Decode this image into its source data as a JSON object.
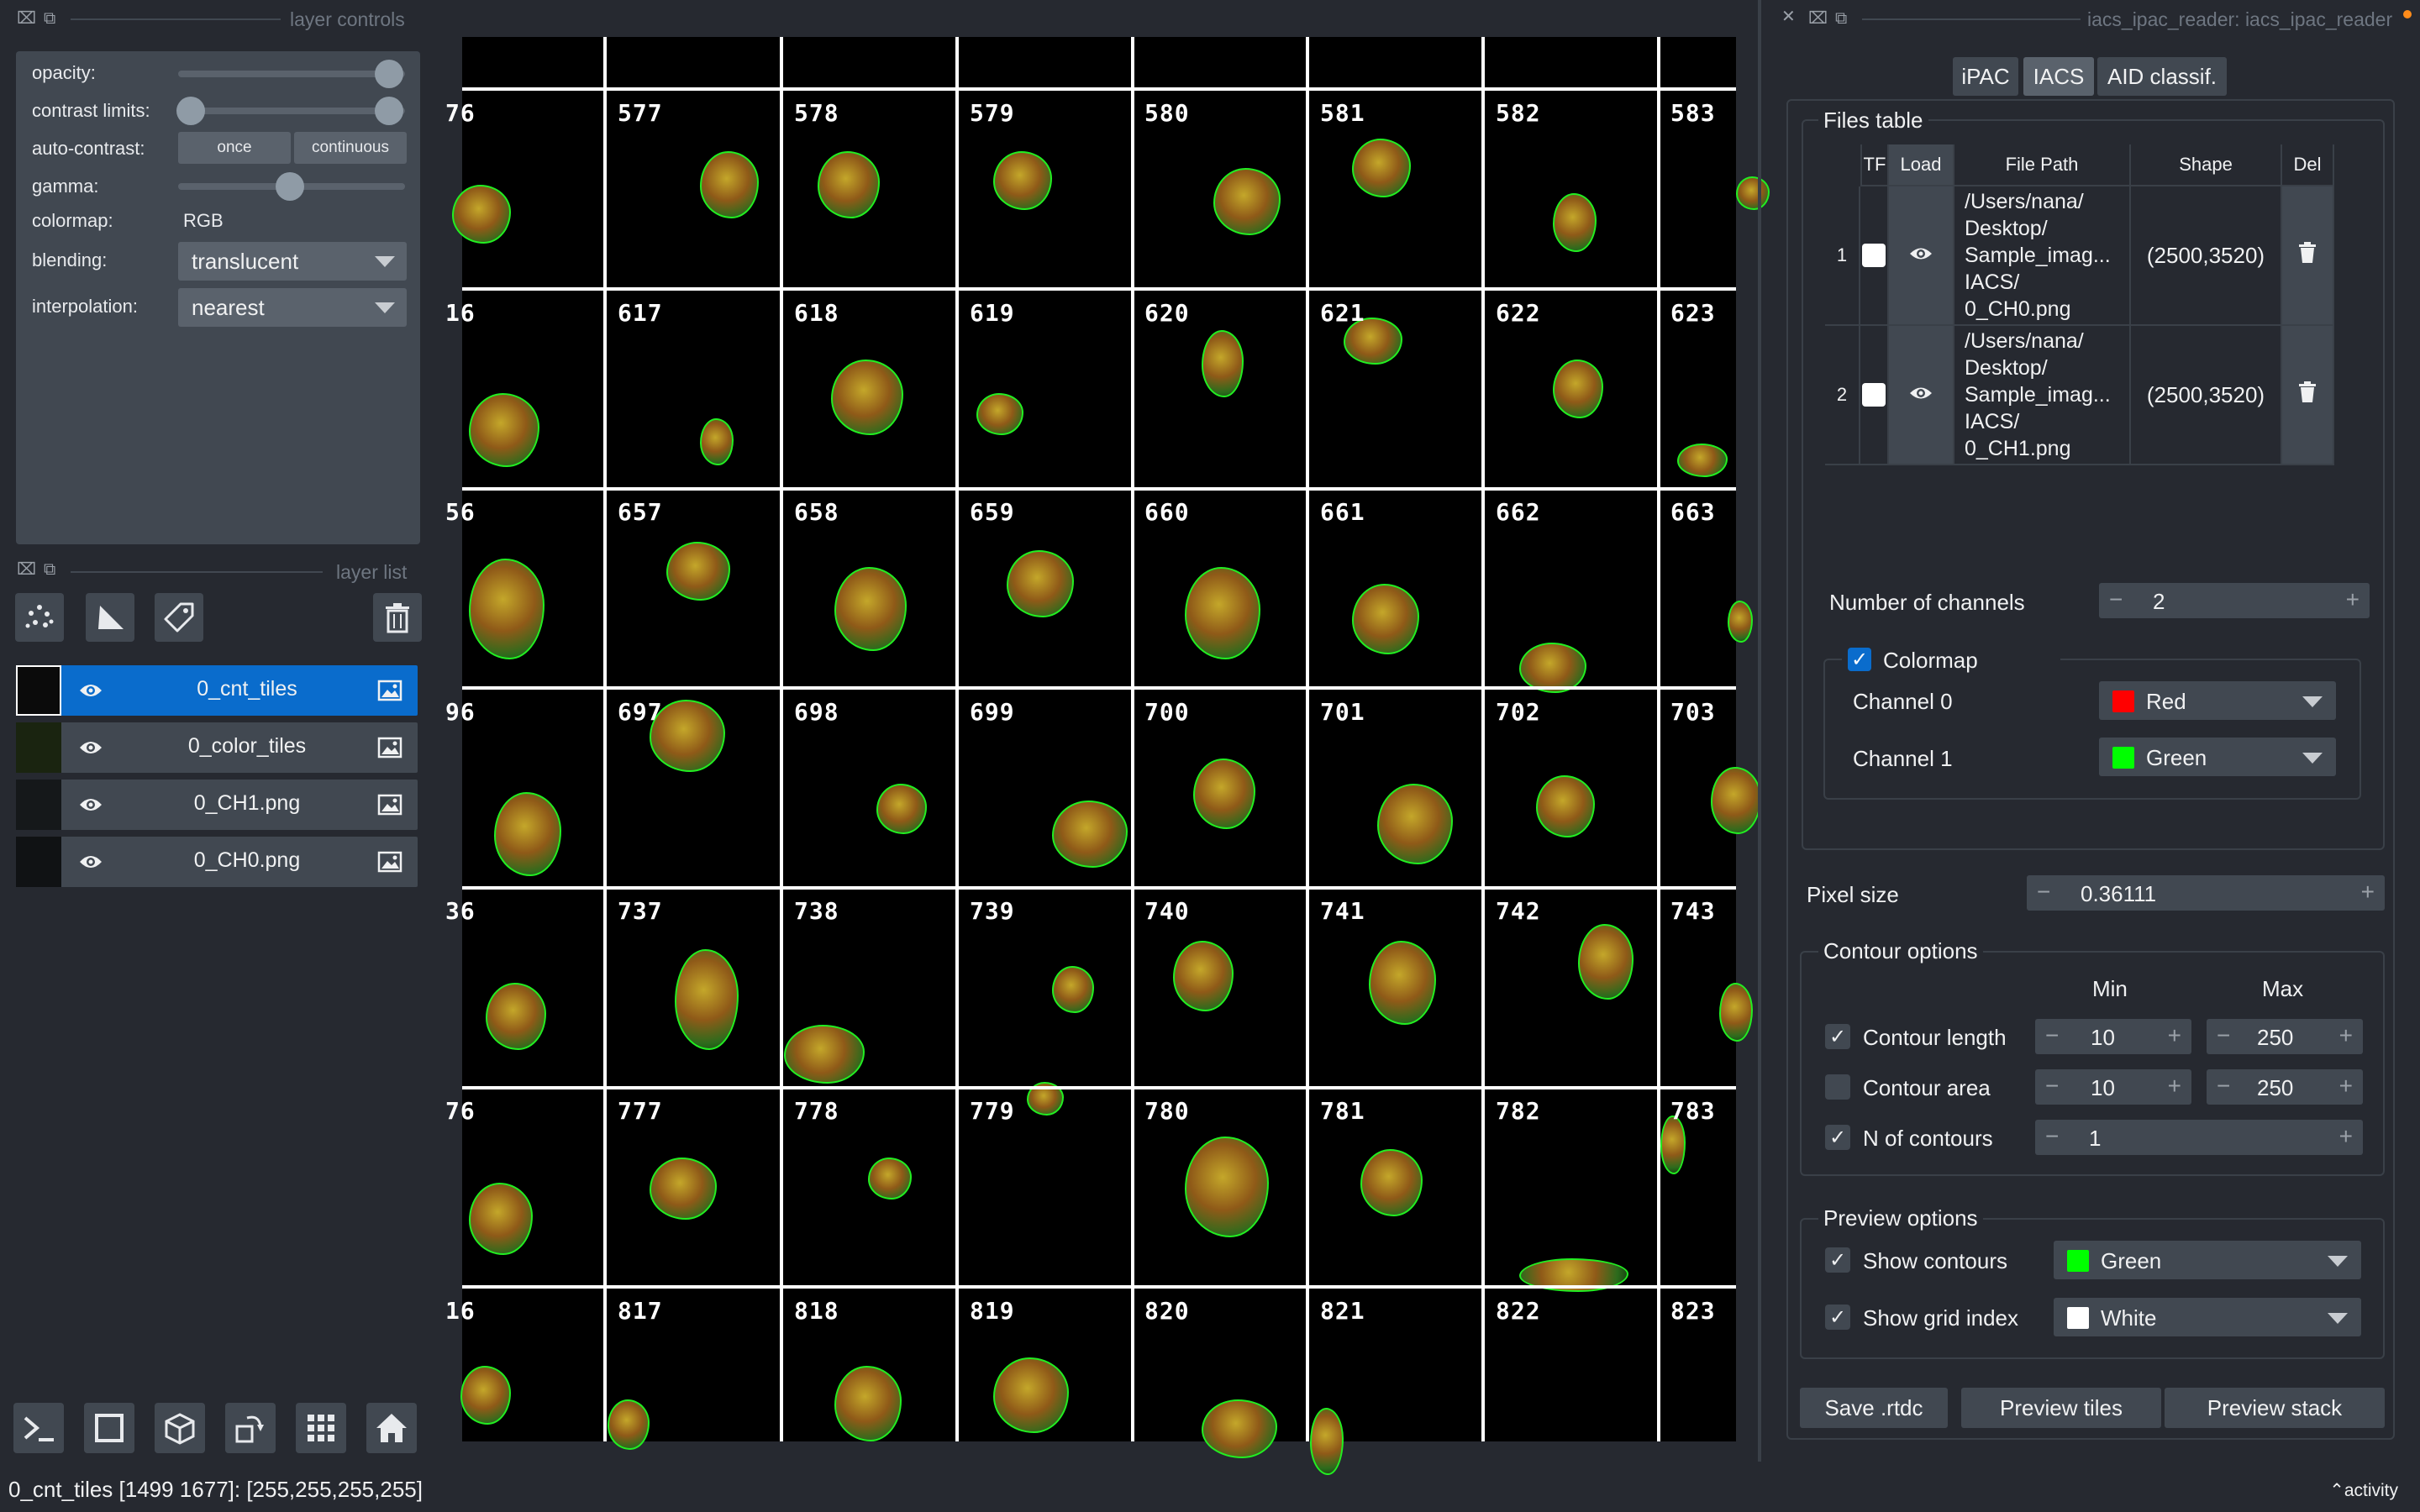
{
  "layer_controls": {
    "title": "layer controls",
    "opacity_label": "opacity:",
    "opacity_value": 1.0,
    "contrast_label": "contrast limits:",
    "contrast_range": [
      0,
      1
    ],
    "autocontrast_label": "auto-contrast:",
    "once_label": "once",
    "continuous_label": "continuous",
    "gamma_label": "gamma:",
    "gamma_value": 0.5,
    "colormap_label": "colormap:",
    "colormap_value": "RGB",
    "blending_label": "blending:",
    "blending_value": "translucent",
    "interpolation_label": "interpolation:",
    "interpolation_value": "nearest"
  },
  "layer_list": {
    "title": "layer list",
    "tools": [
      "points-icon",
      "shapes-icon",
      "labels-icon"
    ],
    "delete_icon": "trash-icon",
    "layers": [
      {
        "name": "0_cnt_tiles",
        "selected": true
      },
      {
        "name": "0_color_tiles",
        "selected": false
      },
      {
        "name": "0_CH1.png",
        "selected": false
      },
      {
        "name": "0_CH0.png",
        "selected": false
      }
    ]
  },
  "bottom_toolbar": [
    "console-icon",
    "2d-3d-toggle-icon",
    "roll-dims-icon",
    "transpose-icon",
    "grid-icon",
    "home-icon"
  ],
  "canvas": {
    "rows": [
      [
        "",
        "",
        "",
        "",
        "",
        "",
        "",
        ""
      ],
      [
        "76",
        "577",
        "578",
        "579",
        "580",
        "581",
        "582",
        "583"
      ],
      [
        "16",
        "617",
        "618",
        "619",
        "620",
        "621",
        "622",
        "623"
      ],
      [
        "56",
        "657",
        "658",
        "659",
        "660",
        "661",
        "662",
        "663"
      ],
      [
        "96",
        "697",
        "698",
        "699",
        "700",
        "701",
        "702",
        "703"
      ],
      [
        "36",
        "737",
        "738",
        "739",
        "740",
        "741",
        "742",
        "743"
      ],
      [
        "76",
        "777",
        "778",
        "779",
        "780",
        "781",
        "782",
        "783"
      ],
      [
        "16",
        "817",
        "818",
        "819",
        "820",
        "821",
        "822",
        "823"
      ]
    ]
  },
  "right_panel": {
    "title": "iacs_ipac_reader: iacs_ipac_reader",
    "tabs": [
      {
        "label": "iPAC",
        "active": false
      },
      {
        "label": "IACS",
        "active": true
      },
      {
        "label": "AID classif.",
        "active": false
      }
    ],
    "files_table": {
      "title": "Files table",
      "headers": [
        "TF",
        "Load",
        "File Path",
        "Shape",
        "Del"
      ],
      "rows": [
        {
          "index": "1",
          "path_lines": [
            "/Users/nana/",
            "Desktop/",
            "Sample_imag...",
            "IACS/",
            "0_CH0.png"
          ],
          "shape": "(2500,3520)"
        },
        {
          "index": "2",
          "path_lines": [
            "/Users/nana/",
            "Desktop/",
            "Sample_imag...",
            "IACS/",
            "0_CH1.png"
          ],
          "shape": "(2500,3520)"
        }
      ]
    },
    "num_channels_label": "Number of channels",
    "num_channels_value": "2",
    "colormap_label": "Colormap",
    "channels": [
      {
        "label": "Channel 0",
        "color_name": "Red",
        "color": "#ff0000"
      },
      {
        "label": "Channel 1",
        "color_name": "Green",
        "color": "#00ff00"
      }
    ],
    "pixel_size_label": "Pixel size",
    "pixel_size_value": "0.36111",
    "contour_options": {
      "title": "Contour options",
      "min_label": "Min",
      "max_label": "Max",
      "length_label": "Contour length",
      "length_min": "10",
      "length_max": "250",
      "area_label": "Contour area",
      "area_min": "10",
      "area_max": "250",
      "n_label": "N of contours",
      "n_value": "1"
    },
    "preview_options": {
      "title": "Preview options",
      "show_contours_label": "Show contours",
      "contour_color_name": "Green",
      "contour_color": "#00ff00",
      "show_grid_label": "Show grid index",
      "grid_color_name": "White",
      "grid_color": "#ffffff"
    },
    "buttons": {
      "save": "Save .rtdc",
      "preview_tiles": "Preview tiles",
      "preview_stack": "Preview stack"
    }
  },
  "status_bar": {
    "text": "0_cnt_tiles [1499 1677]: [255,255,255,255]",
    "activity": "activity"
  },
  "colors": {
    "accent": "#0a6ccc",
    "panel": "#414851",
    "background": "#262930"
  }
}
